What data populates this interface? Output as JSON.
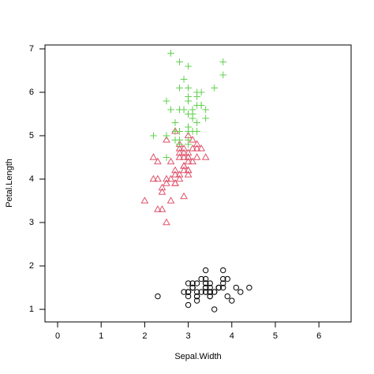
{
  "chart_data": {
    "type": "scatter",
    "x_label": "Sepal.Width",
    "y_label": "Petal.Length",
    "xlim": [
      -0.29,
      6.74
    ],
    "ylim": [
      0.71,
      7.09
    ],
    "xticks": [
      0,
      1,
      2,
      3,
      4,
      5,
      6
    ],
    "yticks": [
      1,
      2,
      3,
      4,
      5,
      6,
      7
    ],
    "series": [
      {
        "color": "#000000",
        "marker": "circle",
        "x": [
          3.5,
          3.0,
          3.2,
          3.1,
          3.6,
          3.9,
          3.4,
          3.4,
          2.9,
          3.1,
          3.7,
          3.4,
          3.0,
          3.0,
          4.0,
          4.4,
          3.9,
          3.5,
          3.8,
          3.8,
          3.4,
          3.7,
          3.6,
          3.3,
          3.4,
          3.0,
          3.4,
          3.5,
          3.4,
          3.2,
          3.1,
          3.4,
          4.1,
          4.2,
          3.1,
          3.2,
          3.5,
          3.6,
          3.0,
          3.4,
          3.5,
          2.3,
          3.2,
          3.5,
          3.8,
          3.0,
          3.8,
          3.2,
          3.7,
          3.3
        ],
        "values": [
          1.4,
          1.4,
          1.3,
          1.5,
          1.4,
          1.7,
          1.4,
          1.5,
          1.4,
          1.5,
          1.5,
          1.6,
          1.4,
          1.1,
          1.2,
          1.5,
          1.3,
          1.4,
          1.7,
          1.5,
          1.7,
          1.5,
          1.0,
          1.7,
          1.9,
          1.6,
          1.6,
          1.5,
          1.4,
          1.6,
          1.6,
          1.5,
          1.5,
          1.4,
          1.5,
          1.2,
          1.3,
          1.4,
          1.3,
          1.5,
          1.3,
          1.3,
          1.3,
          1.6,
          1.9,
          1.4,
          1.6,
          1.4,
          1.5,
          1.4
        ]
      },
      {
        "color": "#df536b",
        "marker": "triangle",
        "x": [
          3.2,
          3.2,
          3.1,
          2.3,
          2.8,
          2.8,
          3.3,
          2.4,
          2.9,
          2.7,
          2.0,
          3.0,
          2.2,
          2.9,
          2.9,
          3.1,
          3.0,
          2.7,
          2.2,
          2.5,
          3.2,
          2.8,
          2.5,
          2.8,
          2.9,
          3.0,
          2.8,
          3.0,
          2.9,
          2.6,
          2.4,
          2.4,
          2.7,
          2.7,
          3.0,
          3.4,
          3.1,
          2.3,
          3.0,
          2.5,
          2.6,
          3.0,
          2.6,
          2.3,
          2.7,
          3.0,
          2.9,
          2.9,
          2.5,
          2.8
        ],
        "values": [
          4.7,
          4.5,
          4.9,
          4.0,
          4.6,
          4.5,
          4.7,
          3.3,
          4.6,
          3.9,
          3.5,
          4.2,
          4.0,
          4.7,
          3.6,
          4.4,
          4.5,
          4.1,
          4.5,
          3.9,
          4.8,
          4.0,
          4.9,
          4.7,
          4.3,
          4.4,
          4.8,
          5.0,
          4.5,
          3.5,
          3.8,
          3.7,
          3.9,
          5.1,
          4.5,
          4.5,
          4.7,
          4.4,
          4.1,
          4.0,
          4.4,
          4.6,
          4.0,
          3.3,
          4.2,
          4.2,
          4.2,
          4.3,
          3.0,
          4.1
        ]
      },
      {
        "color": "#61d04f",
        "marker": "plus",
        "x": [
          3.3,
          2.7,
          3.0,
          2.9,
          3.0,
          3.0,
          2.5,
          2.9,
          2.5,
          3.6,
          3.2,
          2.7,
          3.0,
          2.5,
          2.8,
          3.2,
          3.0,
          3.8,
          2.6,
          2.2,
          3.2,
          2.8,
          2.8,
          2.7,
          3.3,
          3.2,
          2.8,
          3.0,
          2.8,
          3.0,
          2.8,
          3.8,
          2.8,
          2.8,
          2.6,
          3.0,
          3.4,
          3.1,
          3.0,
          3.1,
          3.1,
          3.1,
          2.7,
          3.2,
          3.3,
          3.0,
          2.5,
          3.0,
          3.4,
          3.0
        ],
        "values": [
          6.0,
          5.1,
          5.9,
          5.6,
          5.8,
          6.6,
          4.5,
          6.3,
          5.8,
          6.1,
          5.1,
          5.3,
          5.5,
          5.0,
          5.1,
          5.3,
          5.5,
          6.7,
          6.9,
          5.0,
          5.7,
          4.9,
          6.7,
          4.9,
          5.7,
          6.0,
          4.8,
          4.9,
          5.6,
          5.8,
          6.1,
          6.4,
          5.6,
          5.1,
          5.6,
          6.1,
          5.6,
          5.5,
          4.8,
          5.4,
          5.6,
          5.1,
          5.1,
          5.9,
          5.7,
          5.2,
          5.0,
          5.2,
          5.4,
          5.1
        ]
      }
    ]
  }
}
